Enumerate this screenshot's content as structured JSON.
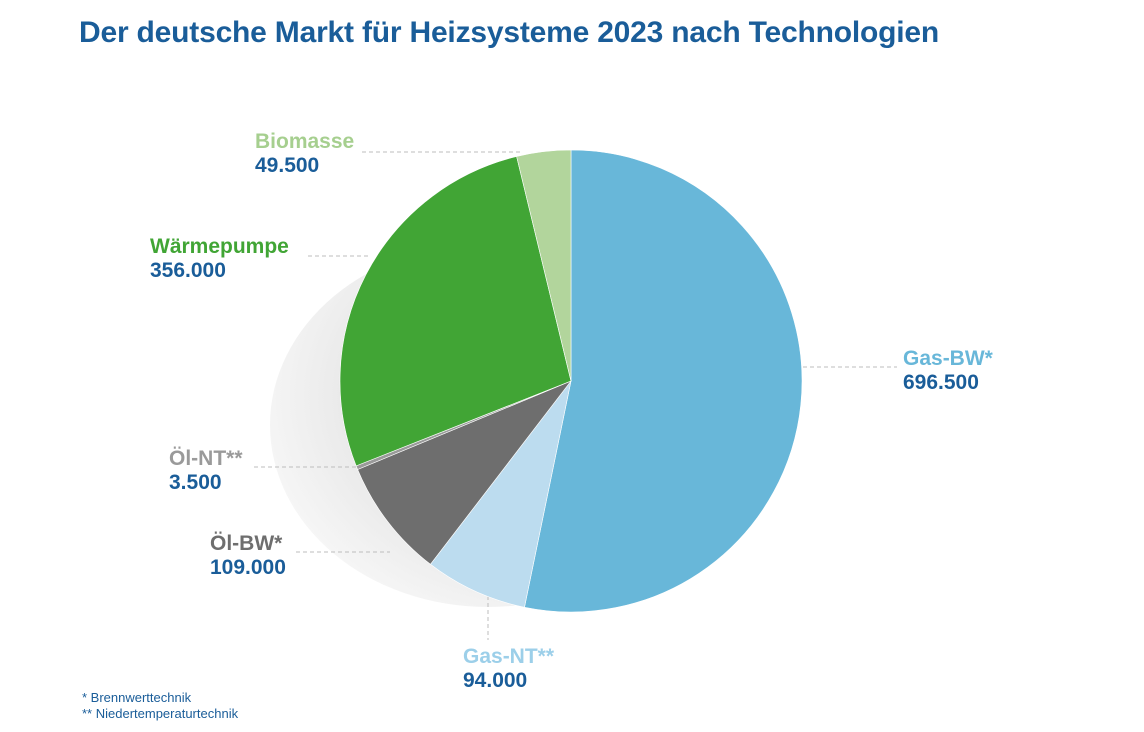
{
  "title": "Der deutsche Markt für Heizsysteme 2023 nach Technologien",
  "chart_data": {
    "type": "pie",
    "title": "Der deutsche Markt für Heizsysteme 2023 nach Technologien",
    "slices": [
      {
        "name": "Gas-BW*",
        "value": 696500,
        "value_label": "696.500",
        "color": "#68b7d9"
      },
      {
        "name": "Gas-NT**",
        "value": 94000,
        "value_label": "94.000",
        "color": "#bcdcef"
      },
      {
        "name": "Öl-BW*",
        "value": 109000,
        "value_label": "109.000",
        "color": "#6e6e6e"
      },
      {
        "name": "Öl-NT**",
        "value": 3500,
        "value_label": "3.500",
        "color": "#9a9a9a"
      },
      {
        "name": "Wärmepumpe",
        "value": 356000,
        "value_label": "356.000",
        "color": "#41a535"
      },
      {
        "name": "Biomasse",
        "value": 49500,
        "value_label": "49.500",
        "color": "#b2d59c"
      }
    ]
  },
  "label_colors": {
    "Gas-BW*": "#68b7d9",
    "Gas-NT**": "#9ccfe9",
    "Öl-BW*": "#6e6e6e",
    "Öl-NT**": "#9a9a9a",
    "Wärmepumpe": "#41a535",
    "Biomasse": "#a6cf8f",
    "value": "#1a5d99"
  },
  "footnotes": [
    "* Brennwerttechnik",
    "** Niedertemperaturtechnik"
  ]
}
